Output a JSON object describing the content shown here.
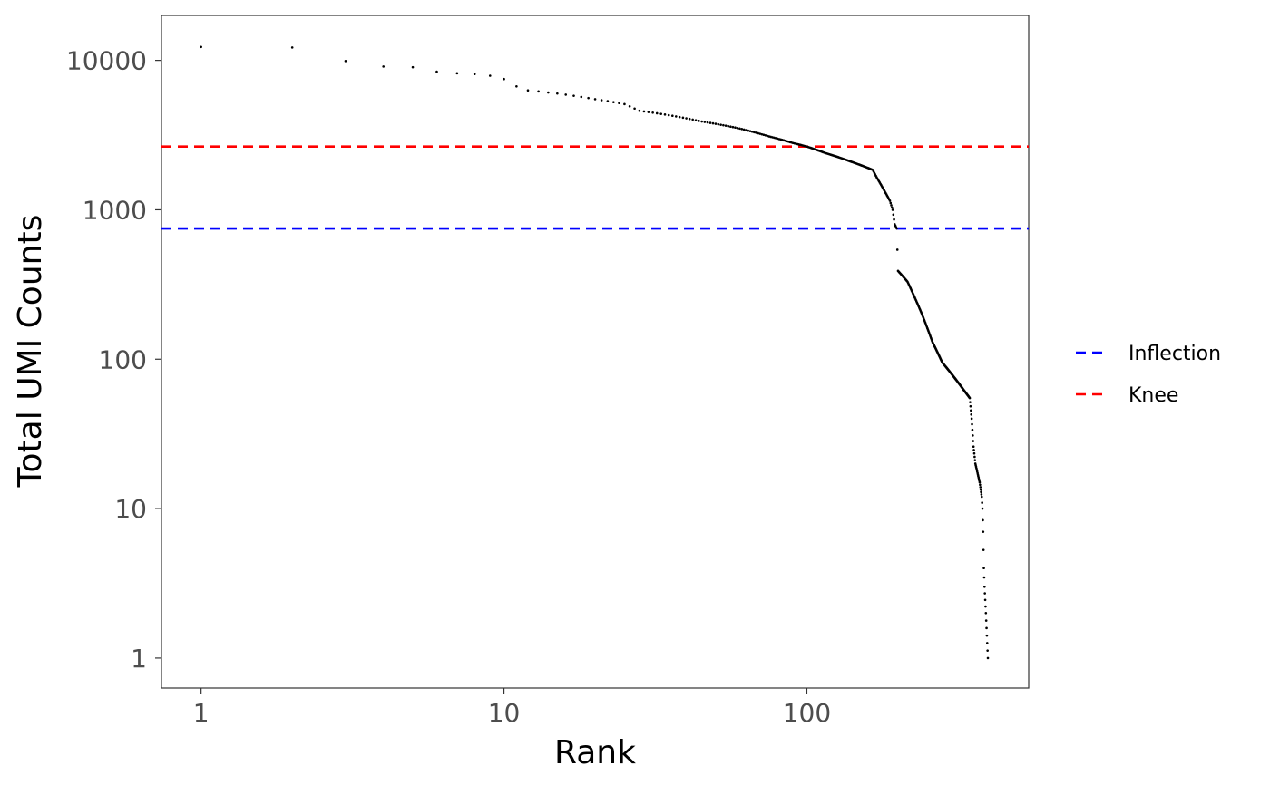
{
  "chart_data": {
    "type": "scatter",
    "title": "",
    "xlabel": "Rank",
    "ylabel": "Total UMI Counts",
    "x_scale": "log10",
    "y_scale": "log10",
    "xlim": [
      0.74,
      540
    ],
    "ylim": [
      0.63,
      20000
    ],
    "grid": false,
    "legend_position": "right",
    "x_ticks": [
      {
        "value": 1,
        "label": "1"
      },
      {
        "value": 10,
        "label": "10"
      },
      {
        "value": 100,
        "label": "100"
      }
    ],
    "y_ticks": [
      {
        "value": 1,
        "label": "1"
      },
      {
        "value": 10,
        "label": "10"
      },
      {
        "value": 100,
        "label": "100"
      },
      {
        "value": 1000,
        "label": "1000"
      },
      {
        "value": 10000,
        "label": "10000"
      }
    ],
    "reference_lines": [
      {
        "name": "Inflection",
        "y": 750,
        "color": "#0000ff",
        "style": "dashed"
      },
      {
        "name": "Knee",
        "y": 2650,
        "color": "#ff0000",
        "style": "dashed"
      }
    ],
    "point_color": "#000000",
    "curve_knots": [
      [
        1,
        12300
      ],
      [
        2,
        12200
      ],
      [
        3,
        9900
      ],
      [
        4,
        9100
      ],
      [
        5,
        9000
      ],
      [
        6,
        8400
      ],
      [
        7,
        8200
      ],
      [
        8,
        8100
      ],
      [
        9,
        7900
      ],
      [
        10,
        7500
      ],
      [
        11,
        6700
      ],
      [
        12,
        6300
      ],
      [
        15,
        6000
      ],
      [
        20,
        5500
      ],
      [
        25,
        5100
      ],
      [
        28,
        4600
      ],
      [
        35,
        4300
      ],
      [
        45,
        3900
      ],
      [
        60,
        3500
      ],
      [
        75,
        3100
      ],
      [
        90,
        2800
      ],
      [
        100,
        2650
      ],
      [
        115,
        2400
      ],
      [
        140,
        2100
      ],
      [
        165,
        1850
      ],
      [
        170,
        1650
      ],
      [
        180,
        1350
      ],
      [
        188,
        1150
      ],
      [
        192,
        1000
      ],
      [
        195,
        800
      ],
      [
        198,
        750
      ],
      [
        200,
        390
      ],
      [
        215,
        330
      ],
      [
        240,
        200
      ],
      [
        260,
        130
      ],
      [
        280,
        95
      ],
      [
        300,
        80
      ],
      [
        330,
        62
      ],
      [
        345,
        55
      ],
      [
        350,
        40
      ],
      [
        355,
        26
      ],
      [
        360,
        20
      ],
      [
        372,
        15
      ],
      [
        378,
        12
      ],
      [
        380,
        10
      ],
      [
        382,
        7
      ],
      [
        384,
        4
      ],
      [
        386,
        3
      ],
      [
        390,
        2
      ],
      [
        396,
        1
      ]
    ]
  },
  "legend": {
    "items": [
      {
        "label": "Inflection",
        "color": "#0000ff"
      },
      {
        "label": "Knee",
        "color": "#ff0000"
      }
    ]
  }
}
